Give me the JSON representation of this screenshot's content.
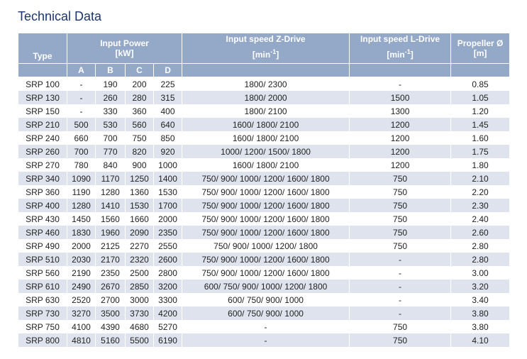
{
  "title": "Technical Data",
  "headers": {
    "type": "Type",
    "input_power": "Input Power",
    "input_power_unit": "[kW]",
    "z_drive": "Input speed Z-Drive",
    "l_drive": "Input speed L-Drive",
    "speed_unit_base": "[min",
    "speed_unit_exp": "-1",
    "speed_unit_close": "]",
    "propeller": "Propeller Ø",
    "propeller_unit": "[m]",
    "sub": [
      "A",
      "B",
      "C",
      "D"
    ]
  },
  "rows": [
    [
      "SRP 100",
      "-",
      "190",
      "200",
      "225",
      "1800/ 2300",
      "-",
      "0.85"
    ],
    [
      "SRP 130",
      "-",
      "260",
      "280",
      "315",
      "1800/ 2000",
      "1500",
      "1.05"
    ],
    [
      "SRP 150",
      "-",
      "330",
      "360",
      "400",
      "1800/ 2100",
      "1300",
      "1.20"
    ],
    [
      "SRP 210",
      "500",
      "530",
      "560",
      "640",
      "1600/ 1800/ 2100",
      "1200",
      "1.45"
    ],
    [
      "SRP 240",
      "660",
      "700",
      "750",
      "850",
      "1600/ 1800/ 2100",
      "1200",
      "1.60"
    ],
    [
      "SRP 260",
      "700",
      "770",
      "820",
      "920",
      "1000/ 1200/ 1500/ 1800",
      "1200",
      "1.75"
    ],
    [
      "SRP 270",
      "780",
      "840",
      "900",
      "1000",
      "1600/ 1800/ 2100",
      "1200",
      "1.80"
    ],
    [
      "SRP 340",
      "1090",
      "1170",
      "1250",
      "1400",
      "750/ 900/ 1000/ 1200/ 1600/ 1800",
      "750",
      "2.10"
    ],
    [
      "SRP 360",
      "1190",
      "1280",
      "1360",
      "1530",
      "750/ 900/ 1000/ 1200/ 1600/ 1800",
      "750",
      "2.20"
    ],
    [
      "SRP 400",
      "1280",
      "1410",
      "1530",
      "1700",
      "750/ 900/ 1000/ 1200/ 1600/ 1800",
      "750",
      "2.30"
    ],
    [
      "SRP 430",
      "1450",
      "1560",
      "1660",
      "2000",
      "750/ 900/ 1000/ 1200/ 1600/ 1800",
      "750",
      "2.40"
    ],
    [
      "SRP 460",
      "1830",
      "1960",
      "2090",
      "2350",
      "750/ 900/ 1000/ 1200/ 1600/ 1800",
      "750",
      "2.60"
    ],
    [
      "SRP 490",
      "2000",
      "2125",
      "2270",
      "2550",
      "750/ 900/ 1000/ 1200/ 1800",
      "750",
      "2.80"
    ],
    [
      "SRP 510",
      "2030",
      "2170",
      "2320",
      "2600",
      "750/ 900/ 1000/ 1200/ 1600/ 1800",
      "-",
      "2.80"
    ],
    [
      "SRP 560",
      "2190",
      "2350",
      "2500",
      "2800",
      "750/ 900/ 1000/ 1200/ 1600/ 1800",
      "-",
      "3.00"
    ],
    [
      "SRP 610",
      "2490",
      "2670",
      "2850",
      "3200",
      "600/ 750/ 900/ 1000/ 1200/ 1800",
      "-",
      "3.20"
    ],
    [
      "SRP 630",
      "2520",
      "2700",
      "3000",
      "3300",
      "600/ 750/ 900/ 1000",
      "-",
      "3.40"
    ],
    [
      "SRP 730",
      "3270",
      "3500",
      "3730",
      "4200",
      "600/ 750/ 900/ 1000",
      "-",
      "3.80"
    ],
    [
      "SRP 750",
      "4100",
      "4390",
      "4680",
      "5270",
      "-",
      "750",
      "3.80"
    ],
    [
      "SRP 800",
      "4810",
      "5160",
      "5500",
      "6190",
      "-",
      "750",
      "4.10"
    ]
  ]
}
